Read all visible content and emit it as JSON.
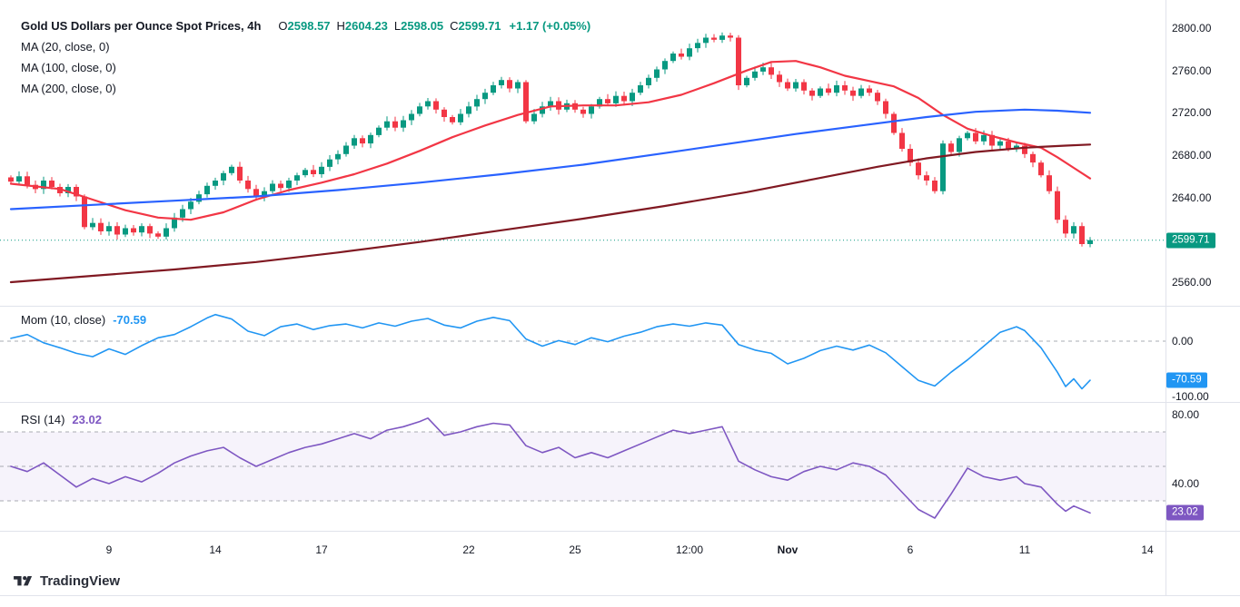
{
  "colors": {
    "background": "#ffffff",
    "up": "#089981",
    "down": "#F23645",
    "ma20": "#F23645",
    "ma100": "#2962FF",
    "ma200": "#801922",
    "mom": "#2196F3",
    "rsi": "#7E57C2",
    "rsi_band_fill": "#7E57C2",
    "grid_line": "#E0E3EB",
    "dashed_level": "#9598A1",
    "text": "#131722",
    "price_badge_bg": "#089981",
    "mom_badge_bg": "#2196F3",
    "rsi_badge_bg": "#7E57C2"
  },
  "legend": {
    "title": "Gold US Dollars per Ounce Spot Prices, 4h",
    "ohlc": {
      "o_label": "O",
      "o": "2598.57",
      "h_label": "H",
      "h": "2604.23",
      "l_label": "L",
      "l": "2598.05",
      "c_label": "C",
      "c": "2599.71",
      "change": "+1.17 (+0.05%)"
    },
    "ma_rows": [
      "MA (20, close, 0)",
      "MA (100, close, 0)",
      "MA (200, close, 0)"
    ]
  },
  "mom_legend": {
    "label": "Mom (10, close)",
    "value": "-70.59"
  },
  "rsi_legend": {
    "label": "RSI (14)",
    "value": "23.02"
  },
  "footer": {
    "logo_text": "TradingView"
  },
  "chart_data": [
    {
      "type": "candlestick",
      "title": "Gold US Dollars per Ounce Spot Prices, 4h",
      "timeframe": "4h",
      "ohlc_display": {
        "open": 2598.57,
        "high": 2604.23,
        "low": 2598.05,
        "close": 2599.71,
        "change_abs": 1.17,
        "change_pct": 0.05
      },
      "ylim": [
        2545,
        2812
      ],
      "y_ticks": [
        {
          "v": 2800,
          "label": "2800.00"
        },
        {
          "v": 2760,
          "label": "2760.00"
        },
        {
          "v": 2720,
          "label": "2720.00"
        },
        {
          "v": 2680,
          "label": "2680.00"
        },
        {
          "v": 2640,
          "label": "2640.00"
        },
        {
          "v": 2560,
          "label": "2560.00"
        }
      ],
      "x_ticks": [
        {
          "i": 12,
          "label": "9"
        },
        {
          "i": 25,
          "label": "14"
        },
        {
          "i": 38,
          "label": "17"
        },
        {
          "i": 56,
          "label": "22"
        },
        {
          "i": 69,
          "label": "25"
        },
        {
          "i": 83,
          "label": "12:00"
        },
        {
          "i": 95,
          "label": "Nov",
          "major": true
        },
        {
          "i": 110,
          "label": "6"
        },
        {
          "i": 124,
          "label": "11"
        },
        {
          "i": 139,
          "label": "14"
        }
      ],
      "last_price": 2599.71,
      "last_price_label": "2599.71",
      "closes": [
        2655,
        2660,
        2652,
        2648,
        2656,
        2650,
        2644,
        2650,
        2641,
        2612,
        2616,
        2608,
        2613,
        2605,
        2611,
        2607,
        2613,
        2606,
        2603,
        2611,
        2621,
        2629,
        2636,
        2643,
        2651,
        2656,
        2663,
        2669,
        2656,
        2648,
        2641,
        2646,
        2653,
        2649,
        2656,
        2661,
        2666,
        2662,
        2669,
        2676,
        2681,
        2689,
        2696,
        2691,
        2699,
        2706,
        2712,
        2706,
        2713,
        2719,
        2726,
        2731,
        2723,
        2716,
        2711,
        2719,
        2726,
        2733,
        2739,
        2746,
        2751,
        2743,
        2749,
        2712,
        2719,
        2726,
        2731,
        2723,
        2729,
        2723,
        2719,
        2726,
        2733,
        2729,
        2736,
        2731,
        2739,
        2746,
        2753,
        2761,
        2769,
        2776,
        2773,
        2781,
        2786,
        2791,
        2789,
        2793,
        2791,
        2746,
        2753,
        2759,
        2763,
        2756,
        2749,
        2743,
        2749,
        2741,
        2736,
        2743,
        2739,
        2746,
        2741,
        2736,
        2743,
        2739,
        2731,
        2719,
        2701,
        2686,
        2673,
        2661,
        2656,
        2646,
        2691,
        2683,
        2696,
        2701,
        2693,
        2699,
        2689,
        2693,
        2686,
        2689,
        2681,
        2673,
        2661,
        2646,
        2619,
        2606,
        2613,
        2596,
        2599.71
      ],
      "overlays": [
        {
          "name": "MA (20, close, 0)",
          "color_key": "ma20",
          "points": [
            [
              0,
              2653
            ],
            [
              6,
              2648
            ],
            [
              10,
              2638
            ],
            [
              14,
              2628
            ],
            [
              18,
              2621
            ],
            [
              22,
              2619
            ],
            [
              26,
              2626
            ],
            [
              30,
              2638
            ],
            [
              34,
              2647
            ],
            [
              38,
              2654
            ],
            [
              42,
              2662
            ],
            [
              46,
              2672
            ],
            [
              50,
              2684
            ],
            [
              54,
              2697
            ],
            [
              58,
              2708
            ],
            [
              62,
              2718
            ],
            [
              66,
              2726
            ],
            [
              70,
              2727
            ],
            [
              74,
              2727
            ],
            [
              78,
              2730
            ],
            [
              82,
              2737
            ],
            [
              86,
              2748
            ],
            [
              90,
              2760
            ],
            [
              93,
              2768
            ],
            [
              96,
              2769
            ],
            [
              99,
              2763
            ],
            [
              102,
              2755
            ],
            [
              105,
              2750
            ],
            [
              108,
              2745
            ],
            [
              111,
              2734
            ],
            [
              114,
              2718
            ],
            [
              117,
              2705
            ],
            [
              120,
              2698
            ],
            [
              123,
              2692
            ],
            [
              126,
              2687
            ],
            [
              128,
              2678
            ],
            [
              130,
              2668
            ],
            [
              132,
              2658
            ]
          ]
        },
        {
          "name": "MA (100, close, 0)",
          "color_key": "ma100",
          "points": [
            [
              0,
              2629
            ],
            [
              10,
              2633
            ],
            [
              20,
              2637
            ],
            [
              30,
              2641
            ],
            [
              40,
              2647
            ],
            [
              50,
              2654
            ],
            [
              60,
              2662
            ],
            [
              70,
              2671
            ],
            [
              80,
              2682
            ],
            [
              88,
              2691
            ],
            [
              96,
              2700
            ],
            [
              104,
              2708
            ],
            [
              112,
              2716
            ],
            [
              118,
              2721
            ],
            [
              124,
              2723
            ],
            [
              128,
              2722
            ],
            [
              132,
              2720
            ]
          ]
        },
        {
          "name": "MA (200, close, 0)",
          "color_key": "ma200",
          "points": [
            [
              0,
              2560
            ],
            [
              10,
              2566
            ],
            [
              20,
              2572
            ],
            [
              30,
              2579
            ],
            [
              40,
              2588
            ],
            [
              50,
              2598
            ],
            [
              60,
              2609
            ],
            [
              70,
              2620
            ],
            [
              80,
              2632
            ],
            [
              90,
              2645
            ],
            [
              98,
              2657
            ],
            [
              106,
              2669
            ],
            [
              112,
              2677
            ],
            [
              118,
              2683
            ],
            [
              124,
              2687
            ],
            [
              129,
              2689
            ],
            [
              132,
              2690
            ]
          ]
        }
      ]
    },
    {
      "type": "line",
      "title": "Mom (10, close)",
      "last_value": -70.59,
      "badge_label": "-70.59",
      "ylim": [
        -115,
        65
      ],
      "y_ticks": [
        {
          "v": 0,
          "label": "0.00"
        },
        {
          "v": -100,
          "label": "-100.00"
        }
      ],
      "zero_line": 0,
      "points": [
        [
          0,
          5
        ],
        [
          2,
          12
        ],
        [
          4,
          -3
        ],
        [
          6,
          -12
        ],
        [
          8,
          -22
        ],
        [
          10,
          -28
        ],
        [
          12,
          -14
        ],
        [
          14,
          -24
        ],
        [
          16,
          -8
        ],
        [
          18,
          6
        ],
        [
          20,
          12
        ],
        [
          22,
          26
        ],
        [
          24,
          42
        ],
        [
          25,
          48
        ],
        [
          27,
          40
        ],
        [
          29,
          18
        ],
        [
          31,
          10
        ],
        [
          33,
          26
        ],
        [
          35,
          31
        ],
        [
          37,
          21
        ],
        [
          39,
          28
        ],
        [
          41,
          31
        ],
        [
          43,
          24
        ],
        [
          45,
          33
        ],
        [
          47,
          27
        ],
        [
          49,
          36
        ],
        [
          51,
          41
        ],
        [
          53,
          29
        ],
        [
          55,
          24
        ],
        [
          57,
          36
        ],
        [
          59,
          43
        ],
        [
          61,
          37
        ],
        [
          63,
          4
        ],
        [
          65,
          -9
        ],
        [
          67,
          1
        ],
        [
          69,
          -6
        ],
        [
          71,
          6
        ],
        [
          73,
          -1
        ],
        [
          75,
          9
        ],
        [
          77,
          16
        ],
        [
          79,
          26
        ],
        [
          81,
          31
        ],
        [
          83,
          27
        ],
        [
          85,
          33
        ],
        [
          87,
          29
        ],
        [
          89,
          -6
        ],
        [
          91,
          -16
        ],
        [
          93,
          -22
        ],
        [
          95,
          -41
        ],
        [
          97,
          -31
        ],
        [
          99,
          -17
        ],
        [
          101,
          -9
        ],
        [
          103,
          -16
        ],
        [
          105,
          -7
        ],
        [
          107,
          -21
        ],
        [
          109,
          -46
        ],
        [
          111,
          -71
        ],
        [
          113,
          -81
        ],
        [
          115,
          -56
        ],
        [
          117,
          -34
        ],
        [
          119,
          -9
        ],
        [
          121,
          16
        ],
        [
          123,
          26
        ],
        [
          124,
          19
        ],
        [
          126,
          -12
        ],
        [
          128,
          -56
        ],
        [
          129,
          -82
        ],
        [
          130,
          -68
        ],
        [
          131,
          -86
        ],
        [
          132,
          -70.59
        ]
      ]
    },
    {
      "type": "line",
      "title": "RSI (14)",
      "last_value": 23.02,
      "badge_label": "23.02",
      "ylim": [
        8,
        92
      ],
      "y_ticks": [
        {
          "v": 80,
          "label": "80.00"
        },
        {
          "v": 40,
          "label": "40.00"
        }
      ],
      "levels": [
        70,
        50,
        30
      ],
      "band": [
        30,
        70
      ],
      "points": [
        [
          0,
          50
        ],
        [
          2,
          47
        ],
        [
          4,
          52
        ],
        [
          6,
          45
        ],
        [
          8,
          38
        ],
        [
          10,
          43
        ],
        [
          12,
          40
        ],
        [
          14,
          44
        ],
        [
          16,
          41
        ],
        [
          18,
          46
        ],
        [
          20,
          52
        ],
        [
          22,
          56
        ],
        [
          24,
          59
        ],
        [
          26,
          61
        ],
        [
          28,
          55
        ],
        [
          30,
          50
        ],
        [
          32,
          54
        ],
        [
          34,
          58
        ],
        [
          36,
          61
        ],
        [
          38,
          63
        ],
        [
          40,
          66
        ],
        [
          42,
          69
        ],
        [
          44,
          66
        ],
        [
          46,
          71
        ],
        [
          48,
          73
        ],
        [
          50,
          76
        ],
        [
          51,
          78
        ],
        [
          53,
          68
        ],
        [
          55,
          70
        ],
        [
          57,
          73
        ],
        [
          59,
          75
        ],
        [
          61,
          74
        ],
        [
          63,
          62
        ],
        [
          65,
          58
        ],
        [
          67,
          61
        ],
        [
          69,
          55
        ],
        [
          71,
          58
        ],
        [
          73,
          55
        ],
        [
          75,
          59
        ],
        [
          77,
          63
        ],
        [
          79,
          67
        ],
        [
          81,
          71
        ],
        [
          83,
          69
        ],
        [
          85,
          71
        ],
        [
          87,
          73
        ],
        [
          89,
          53
        ],
        [
          91,
          48
        ],
        [
          93,
          44
        ],
        [
          95,
          42
        ],
        [
          97,
          47
        ],
        [
          99,
          50
        ],
        [
          101,
          48
        ],
        [
          103,
          52
        ],
        [
          105,
          50
        ],
        [
          107,
          45
        ],
        [
          109,
          35
        ],
        [
          111,
          25
        ],
        [
          113,
          20
        ],
        [
          114,
          27
        ],
        [
          115,
          34
        ],
        [
          117,
          49
        ],
        [
          119,
          44
        ],
        [
          121,
          42
        ],
        [
          123,
          44
        ],
        [
          124,
          40
        ],
        [
          126,
          38
        ],
        [
          128,
          28
        ],
        [
          129,
          24
        ],
        [
          130,
          27
        ],
        [
          131,
          25
        ],
        [
          132,
          23.02
        ]
      ]
    }
  ]
}
